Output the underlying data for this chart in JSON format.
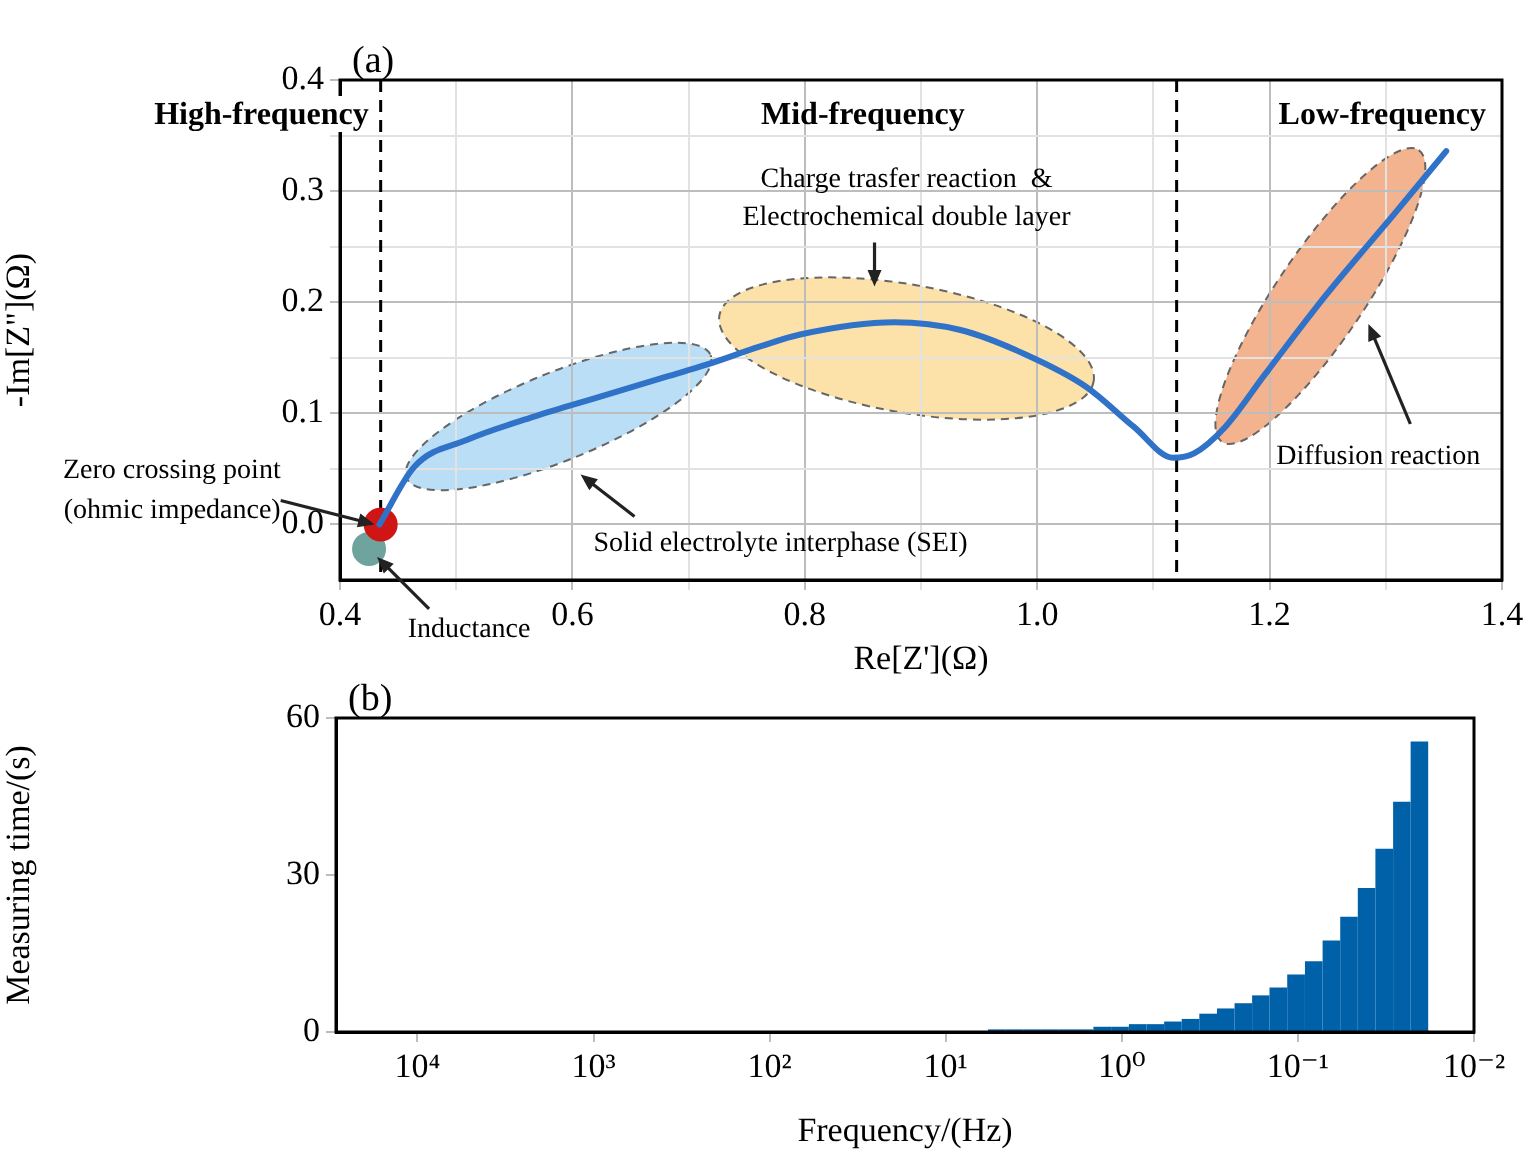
{
  "chart_data": [
    {
      "type": "line",
      "title": "(a)",
      "xlabel": "Re[Z'](Ω)",
      "ylabel": "-Im[Z\"](Ω)",
      "xlim": [
        0.4,
        1.4
      ],
      "ylim": [
        -0.05,
        0.4
      ],
      "xticks": [
        0.4,
        {
          "value": 0.5,
          "label": null
        },
        0.6,
        {
          "value": 0.7,
          "label": null
        },
        0.8,
        {
          "value": 0.9,
          "label": null
        },
        {
          "value": 1,
          "label": "1.0"
        },
        {
          "value": 1.1,
          "label": null
        },
        1.2,
        {
          "value": 1.3,
          "label": null
        },
        1.4
      ],
      "yticks": [
        {
          "value": 0,
          "label": "0.0"
        },
        {
          "value": 0.05,
          "label": null
        },
        0.1,
        {
          "value": 0.15,
          "label": null
        },
        0.2,
        {
          "value": 0.25,
          "label": null
        },
        0.3,
        {
          "value": 0.35,
          "label": null
        },
        0.4
      ],
      "grid": true,
      "series": [
        {
          "type": "line",
          "color": "#2f72c8",
          "marker": "none",
          "x": [
            0.434,
            0.464,
            0.509,
            0.567,
            0.624,
            0.681,
            0.716,
            0.761,
            0.796,
            0.877,
            0.934,
            0.99,
            1.042,
            1.083,
            1.117,
            1.135,
            1.162,
            1.196,
            1.249,
            1.307,
            1.352
          ],
          "values": [
            0,
            0.052,
            0.076,
            0.097,
            0.115,
            0.133,
            0.144,
            0.16,
            0.171,
            0.182,
            0.175,
            0.153,
            0.124,
            0.088,
            0.06,
            0.064,
            0.088,
            0.135,
            0.207,
            0.279,
            0.336
          ]
        },
        {
          "type": "scatter",
          "color": "#d01515",
          "marker": "circle",
          "x": [
            0.435
          ],
          "values": [
            0
          ]
        },
        {
          "type": "scatter",
          "color": "#6fa39d",
          "marker": "circle",
          "x": [
            0.425
          ],
          "values": [
            -0.022
          ]
        }
      ],
      "ref_lines": [
        {
          "axis": "x",
          "value": 0.435,
          "color": "#000000",
          "line_style": "dashed"
        },
        {
          "axis": "x",
          "value": 1.12,
          "color": "#000000",
          "line_style": "dashed"
        }
      ],
      "annotations": [
        "High-frequency",
        "Mid-frequency",
        "Low-frequency",
        "Charge trasfer reaction  &\nElectrochemical double layer",
        "Solid electrolyte interphase (SEI)",
        "Diffusion reaction",
        {
          "text": "Zero crossing point\n(ohmic impedance)",
          "x": 0.435,
          "y": 0
        },
        {
          "text": "Inductance",
          "x": 0.425,
          "y": -0.022
        }
      ]
    },
    {
      "type": "histogram",
      "title": "(b)",
      "xlabel": "Frequency/(Hz)",
      "ylabel": "Measuring time/(s)",
      "color": "#0061a8",
      "log": "x",
      "xlim": [
        29000,
        0.01
      ],
      "ylim": [
        0,
        60
      ],
      "yticks": [
        0,
        30,
        60
      ],
      "xticks": [
        {
          "value": 10000,
          "label": "10⁴"
        },
        {
          "value": 1000,
          "label": "10³"
        },
        {
          "value": 100,
          "label": "10²"
        },
        {
          "value": 10,
          "label": "10¹"
        },
        {
          "value": 1,
          "label": "10⁰"
        },
        {
          "value": 0.1,
          "label": "10⁻¹"
        },
        {
          "value": 0.01,
          "label": "10⁻²"
        }
      ],
      "bins": [
        0.0182,
        0.0229,
        0.0288,
        0.0363,
        0.0457,
        0.0575,
        0.0724,
        0.0912,
        0.115,
        0.145,
        0.182,
        0.229,
        0.288,
        0.363,
        0.457,
        0.575,
        0.724,
        0.912,
        1.15,
        1.45,
        1.82,
        2.29,
        2.88,
        3.63,
        4.57,
        5.75
      ],
      "values": [
        55.5,
        44,
        35,
        27.5,
        22,
        17.5,
        13.5,
        11,
        8.5,
        7,
        5.5,
        4.5,
        3.5,
        2.5,
        2,
        1.5,
        1.5,
        1,
        1,
        0.5,
        0.5,
        0.5,
        0.5,
        0.5,
        0.5
      ]
    }
  ]
}
